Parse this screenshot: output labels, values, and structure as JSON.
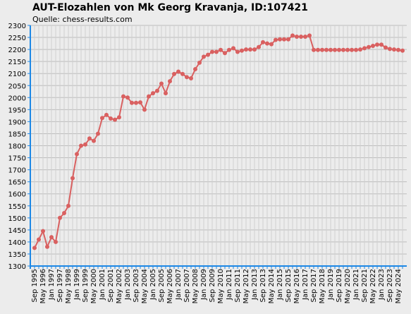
{
  "chart_data": {
    "type": "line",
    "title": "AUT-Elozahlen von Mk Georg Kravanja, ID:107421",
    "subtitle": "Quelle: chess-results.com",
    "categories": [
      "Sep 1995",
      null,
      "May 1996",
      null,
      "Jan 1997",
      null,
      "Sep 1997",
      null,
      "May 1998",
      null,
      "Jan 1999",
      null,
      "Sep 1999",
      null,
      "May 2000",
      null,
      "Jan 2001",
      null,
      "Sep 2001",
      null,
      "May 2002",
      null,
      "Jan 2003",
      null,
      "Sep 2003",
      null,
      "May 2004",
      null,
      "Jan 2005",
      null,
      "Sep 2005",
      null,
      "May 2006",
      null,
      "Jan 2007",
      null,
      "Sep 2007",
      null,
      "May 2008",
      null,
      "Jan 2009",
      null,
      "Sep 2009",
      null,
      "May 2010",
      null,
      "Jan 2011",
      null,
      "Sep 2011",
      null,
      "May 2012",
      null,
      "Jan 2013",
      null,
      "Sep 2013",
      null,
      "May 2014",
      null,
      "Jan 2015",
      null,
      "Sep 2015",
      null,
      "May 2016",
      null,
      "Jan 2017",
      null,
      "Sep 2017",
      null,
      "May 2018",
      null,
      "Jan 2019",
      null,
      "Sep 2019",
      null,
      "May 2020",
      null,
      "Jan 2021",
      null,
      "Sep 2021",
      null,
      "May 2022",
      null,
      "Jan 2023",
      null,
      "Sep 2023",
      null,
      "May 2024",
      null
    ],
    "series": [
      {
        "name": "Elo",
        "color": "#d96060",
        "values": [
          1375,
          1410,
          1445,
          1380,
          1420,
          1400,
          1500,
          1520,
          1550,
          1665,
          1765,
          1800,
          1805,
          1830,
          1820,
          1850,
          1915,
          1928,
          1913,
          1908,
          1918,
          2005,
          2000,
          1978,
          1978,
          1980,
          1950,
          2005,
          2018,
          2028,
          2058,
          2018,
          2068,
          2098,
          2108,
          2098,
          2085,
          2080,
          2118,
          2145,
          2170,
          2178,
          2190,
          2190,
          2198,
          2185,
          2198,
          2205,
          2190,
          2195,
          2200,
          2200,
          2200,
          2210,
          2230,
          2225,
          2222,
          2240,
          2242,
          2242,
          2242,
          2258,
          2253,
          2253,
          2253,
          2258,
          2198,
          2198,
          2198,
          2198,
          2198,
          2198,
          2198,
          2198,
          2198,
          2198,
          2198,
          2200,
          2205,
          2210,
          2215,
          2220,
          2220,
          2208,
          2202,
          2200,
          2198,
          2195
        ]
      }
    ],
    "ylim": [
      1300,
      2300
    ],
    "yticks": [
      1300,
      1350,
      1400,
      1450,
      1500,
      1550,
      1600,
      1650,
      1700,
      1750,
      1800,
      1850,
      1900,
      1950,
      2000,
      2050,
      2100,
      2150,
      2200,
      2250,
      2300
    ],
    "grid": true
  }
}
